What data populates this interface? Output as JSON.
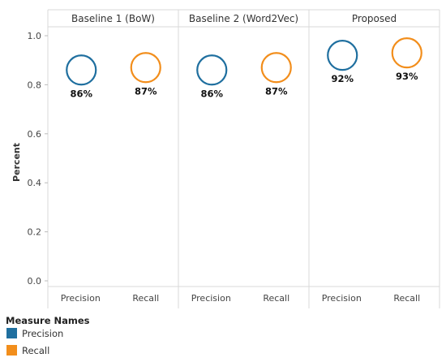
{
  "chart_data": {
    "type": "scatter",
    "ylabel": "Percent",
    "ylim": [
      0,
      1.0
    ],
    "y_ticks": [
      "1.0",
      "0.8",
      "0.6",
      "0.4",
      "0.2",
      "0.0"
    ],
    "grid": false,
    "panels": [
      {
        "title": "Baseline 1 (BoW)",
        "points": [
          {
            "measure": "Precision",
            "value": 0.86,
            "label": "86%"
          },
          {
            "measure": "Recall",
            "value": 0.87,
            "label": "87%"
          }
        ]
      },
      {
        "title": "Baseline 2 (Word2Vec)",
        "points": [
          {
            "measure": "Precision",
            "value": 0.86,
            "label": "86%"
          },
          {
            "measure": "Recall",
            "value": 0.87,
            "label": "87%"
          }
        ]
      },
      {
        "title": "Proposed",
        "points": [
          {
            "measure": "Precision",
            "value": 0.92,
            "label": "92%"
          },
          {
            "measure": "Recall",
            "value": 0.93,
            "label": "93%"
          }
        ]
      }
    ],
    "categories": [
      "Precision",
      "Recall"
    ],
    "legend": {
      "title": "Measure Names",
      "position": "bottom-left",
      "items": [
        {
          "name": "Precision",
          "color": "#1f6f9f"
        },
        {
          "name": "Recall",
          "color": "#f28e1c"
        }
      ]
    }
  }
}
